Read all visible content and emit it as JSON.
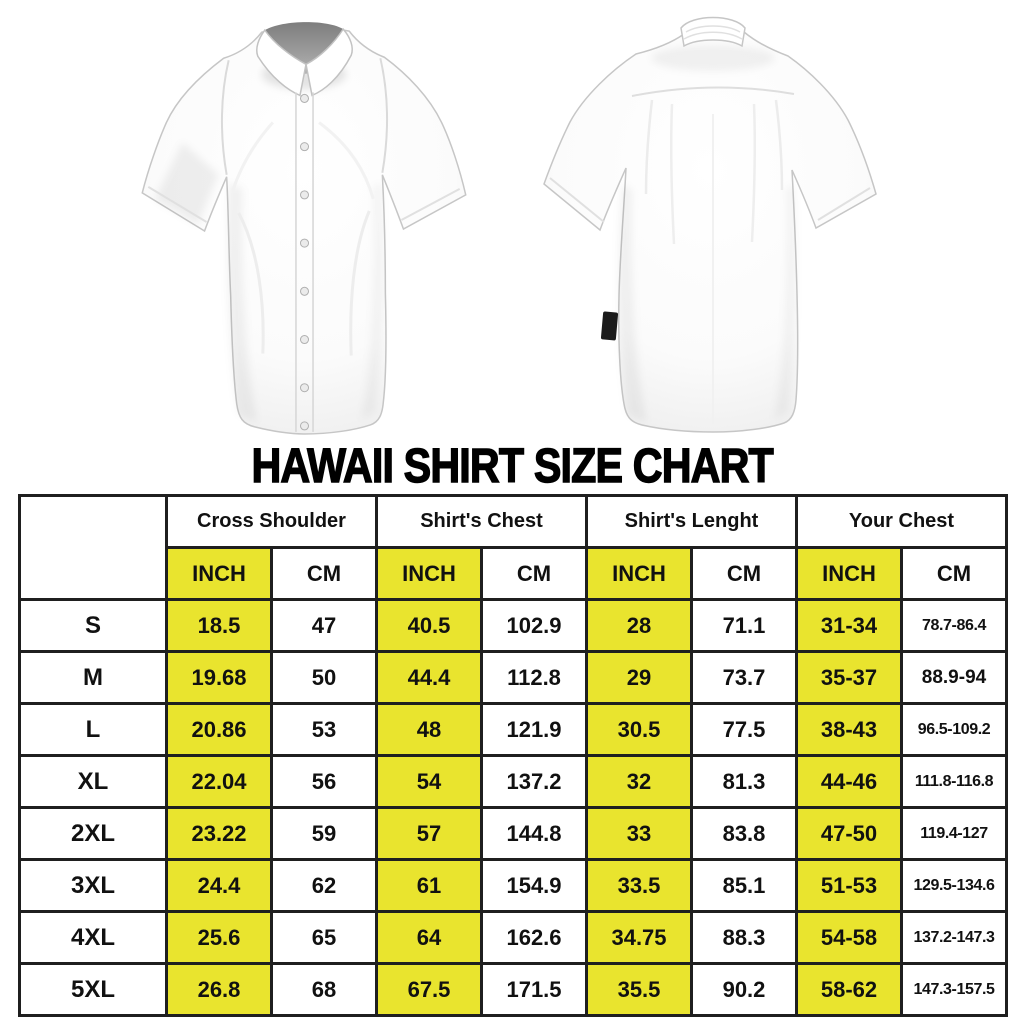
{
  "title": "HAWAII SHIRT SIZE CHART",
  "hero": {
    "front_shirt_alt": "white short-sleeve button-up shirt, front view",
    "back_shirt_alt": "white short-sleeve button-up shirt, back view"
  },
  "colors": {
    "highlight_yellow": "#e9e42e",
    "table_border": "#1f1f1f",
    "background": "#ffffff"
  },
  "table": {
    "corner_label": "",
    "groups": [
      {
        "label": "Cross Shoulder"
      },
      {
        "label": "Shirt's Chest"
      },
      {
        "label": "Shirt's Lenght"
      },
      {
        "label": "Your Chest"
      }
    ],
    "unit_headers": [
      "INCH",
      "CM",
      "INCH",
      "CM",
      "INCH",
      "CM",
      "INCH",
      "CM"
    ],
    "rows": [
      {
        "size": "S",
        "values": [
          "18.5",
          "47",
          "40.5",
          "102.9",
          "28",
          "71.1",
          "31-34",
          "78.7-86.4"
        ]
      },
      {
        "size": "M",
        "values": [
          "19.68",
          "50",
          "44.4",
          "112.8",
          "29",
          "73.7",
          "35-37",
          "88.9-94"
        ]
      },
      {
        "size": "L",
        "values": [
          "20.86",
          "53",
          "48",
          "121.9",
          "30.5",
          "77.5",
          "38-43",
          "96.5-109.2"
        ]
      },
      {
        "size": "XL",
        "values": [
          "22.04",
          "56",
          "54",
          "137.2",
          "32",
          "81.3",
          "44-46",
          "111.8-116.8"
        ]
      },
      {
        "size": "2XL",
        "values": [
          "23.22",
          "59",
          "57",
          "144.8",
          "33",
          "83.8",
          "47-50",
          "119.4-127"
        ]
      },
      {
        "size": "3XL",
        "values": [
          "24.4",
          "62",
          "61",
          "154.9",
          "33.5",
          "85.1",
          "51-53",
          "129.5-134.6"
        ]
      },
      {
        "size": "4XL",
        "values": [
          "25.6",
          "65",
          "64",
          "162.6",
          "34.75",
          "88.3",
          "54-58",
          "137.2-147.3"
        ]
      },
      {
        "size": "5XL",
        "values": [
          "26.8",
          "68",
          "67.5",
          "171.5",
          "35.5",
          "90.2",
          "58-62",
          "147.3-157.5"
        ]
      }
    ]
  }
}
